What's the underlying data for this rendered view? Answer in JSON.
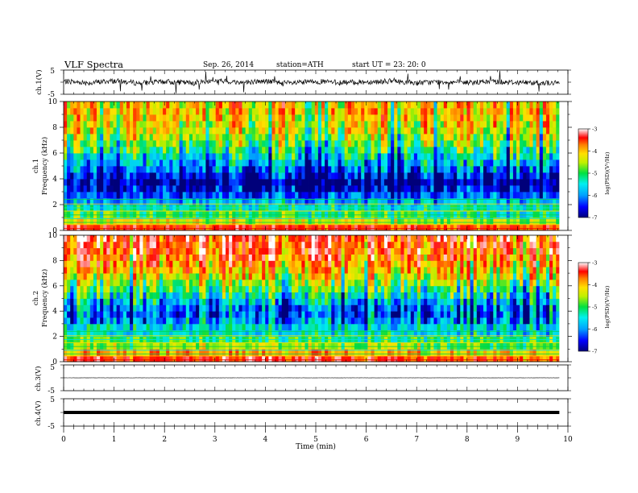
{
  "header": {
    "title": "VLF  Spectra",
    "date": "Sep. 26, 2014",
    "station": "station=ATH",
    "start": "start  UT  =   23: 20: 0"
  },
  "x_axis": {
    "label": "Time  (min)",
    "ticks": [
      "0",
      "1",
      "2",
      "3",
      "4",
      "5",
      "6",
      "7",
      "8",
      "9",
      "10"
    ]
  },
  "colorbar": {
    "label": "log(PSD)(V²/Hz)",
    "ticks": [
      "-3",
      "-4",
      "-5",
      "-6",
      "-7"
    ]
  },
  "chart_data": [
    {
      "type": "line",
      "panel": "ch1-waveform",
      "ylabel": "ch.1(V)",
      "ylim": [
        -5,
        5
      ],
      "y_ticks": [
        "5",
        "-5"
      ],
      "xlim": [
        0,
        10
      ],
      "data_x_end": 9.83,
      "x": [
        0,
        0.5,
        1,
        1.5,
        2,
        2.5,
        3,
        3.5,
        4,
        4.5,
        5,
        5.5,
        6,
        6.5,
        7,
        7.5,
        8,
        8.5,
        9,
        9.5,
        9.83
      ],
      "values": [
        0.3,
        -0.2,
        0.5,
        -0.4,
        0.2,
        -0.3,
        0.6,
        -0.1,
        0.4,
        -0.5,
        0.3,
        -0.2,
        0.1,
        0.4,
        -0.3,
        0.2,
        -0.2,
        0.3,
        -0.1,
        -0.3,
        -0.4
      ]
    },
    {
      "type": "heatmap",
      "panel": "ch1-spectrogram",
      "ylabel": "ch.1\nFrequency  (kHz)",
      "ylim": [
        0,
        10
      ],
      "y_ticks": [
        "0",
        "2",
        "4",
        "6",
        "8",
        "10"
      ],
      "xlim": [
        0,
        10
      ],
      "data_x_end": 9.83,
      "zlim": [
        -7,
        -3
      ],
      "freq_kHz": [
        0.25,
        0.75,
        1.25,
        1.75,
        2.25,
        2.75,
        3.25,
        3.75,
        4.25,
        4.75,
        5.25,
        5.75,
        6.25,
        6.75,
        7.25,
        7.75,
        8.25,
        8.75,
        9.25,
        9.75
      ],
      "median_logPSD": [
        -3.6,
        -4.6,
        -5.2,
        -5.5,
        -5.9,
        -6.3,
        -6.7,
        -6.9,
        -6.6,
        -6.2,
        -5.9,
        -5.6,
        -5.3,
        -5.0,
        -4.8,
        -4.6,
        -4.5,
        -4.4,
        -4.3,
        -4.3
      ]
    },
    {
      "type": "heatmap",
      "panel": "ch2-spectrogram",
      "ylabel": "ch.2\nFrequency  (kHz)",
      "ylim": [
        0,
        10
      ],
      "y_ticks": [
        "0",
        "2",
        "4",
        "6",
        "8",
        "10"
      ],
      "xlim": [
        0,
        10
      ],
      "data_x_end": 9.83,
      "zlim": [
        -7,
        -3
      ],
      "freq_kHz": [
        0.25,
        0.75,
        1.25,
        1.75,
        2.25,
        2.75,
        3.25,
        3.75,
        4.25,
        4.75,
        5.25,
        5.75,
        6.25,
        6.75,
        7.25,
        7.75,
        8.25,
        8.75,
        9.25,
        9.75
      ],
      "median_logPSD": [
        -3.6,
        -4.2,
        -4.8,
        -5.2,
        -5.6,
        -5.7,
        -6.0,
        -6.2,
        -6.1,
        -5.8,
        -5.5,
        -5.1,
        -4.8,
        -4.5,
        -4.2,
        -4.0,
        -3.8,
        -3.7,
        -3.6,
        -3.5
      ]
    },
    {
      "type": "line",
      "panel": "ch3-waveform",
      "ylabel": "ch.3(V)",
      "ylim": [
        -5,
        5
      ],
      "y_ticks": [
        "5",
        "-5"
      ],
      "xlim": [
        0,
        10
      ],
      "data_x_end": 9.83,
      "x": [
        0,
        2,
        4,
        6,
        8,
        9.83
      ],
      "values": [
        0,
        0,
        0,
        0,
        0,
        0
      ]
    },
    {
      "type": "line",
      "panel": "ch4-waveform",
      "ylabel": "ch.4(V)",
      "ylim": [
        -5,
        5
      ],
      "y_ticks": [
        "5",
        "-5"
      ],
      "xlim": [
        0,
        10
      ],
      "data_x_end": 9.83,
      "x": [
        0,
        2,
        4,
        6,
        8,
        9.83
      ],
      "values": [
        0,
        0,
        0,
        0,
        0,
        0
      ]
    }
  ]
}
